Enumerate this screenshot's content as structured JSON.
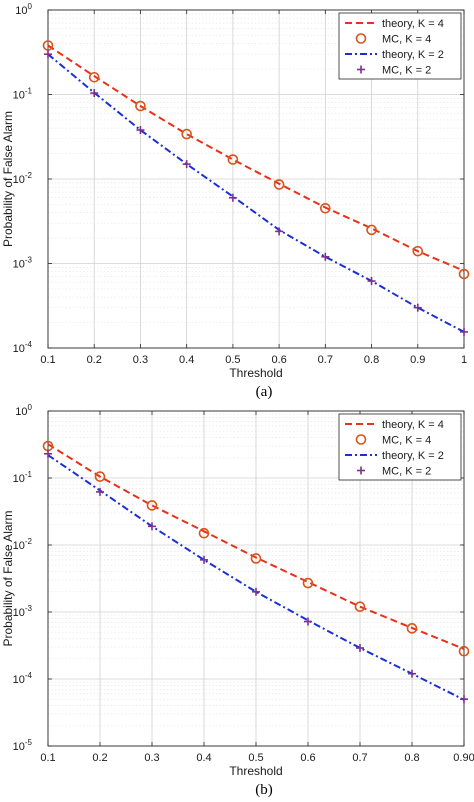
{
  "charts": [
    {
      "caption": "(a)",
      "chart_data": {
        "type": "line",
        "xlabel": "Threshold",
        "ylabel": "Probability of False Alarm",
        "yscale": "log",
        "xlim": [
          0.1,
          1.0
        ],
        "ylim": [
          0.0001,
          1
        ],
        "xticks": [
          0.1,
          0.2,
          0.3,
          0.4,
          0.5,
          0.6,
          0.7,
          0.8,
          0.9,
          1.0
        ],
        "xtick_labels": [
          "0.1",
          "0.2",
          "0.3",
          "0.4",
          "0.5",
          "0.6",
          "0.7",
          "0.8",
          "0.9",
          "1"
        ],
        "ytick_exponents": [
          -4,
          -3,
          -2,
          -1,
          0
        ],
        "grid": true,
        "legend_position": "top-right",
        "series": [
          {
            "name": "theory, K = 4",
            "style": "dashed",
            "color": "#e8311a",
            "x": [
              0.1,
              0.2,
              0.3,
              0.4,
              0.5,
              0.6,
              0.7,
              0.8,
              0.9,
              1.0
            ],
            "y": [
              0.38,
              0.165,
              0.073,
              0.034,
              0.017,
              0.0088,
              0.0046,
              0.0026,
              0.0014,
              0.00082
            ]
          },
          {
            "name": "MC, K = 4",
            "style": "marker-circle",
            "color": "#d9541a",
            "x": [
              0.1,
              0.2,
              0.3,
              0.4,
              0.5,
              0.6,
              0.7,
              0.8,
              0.9,
              1.0
            ],
            "y": [
              0.38,
              0.16,
              0.073,
              0.034,
              0.017,
              0.0086,
              0.0045,
              0.0025,
              0.0014,
              0.00075
            ]
          },
          {
            "name": "theory, K = 2",
            "style": "dashdot",
            "color": "#1a2fd6",
            "x": [
              0.1,
              0.2,
              0.3,
              0.4,
              0.5,
              0.6,
              0.7,
              0.8,
              0.9,
              1.0
            ],
            "y": [
              0.3,
              0.105,
              0.038,
              0.015,
              0.0062,
              0.0025,
              0.0012,
              0.00062,
              0.0003,
              0.000155
            ]
          },
          {
            "name": "MC, K = 2",
            "style": "marker-plus",
            "color": "#7e2f8e",
            "x": [
              0.1,
              0.2,
              0.3,
              0.4,
              0.5,
              0.6,
              0.7,
              0.8,
              0.9,
              1.0
            ],
            "y": [
              0.3,
              0.104,
              0.038,
              0.015,
              0.006,
              0.0024,
              0.0012,
              0.00062,
              0.0003,
              0.000155
            ]
          }
        ]
      }
    },
    {
      "caption": "(b)",
      "chart_data": {
        "type": "line",
        "xlabel": "Threshold",
        "ylabel": "Probability of False Alarm",
        "yscale": "log",
        "xlim": [
          0.1,
          0.9
        ],
        "ylim": [
          1e-05,
          1
        ],
        "xticks": [
          0.1,
          0.2,
          0.3,
          0.4,
          0.5,
          0.6,
          0.7,
          0.8,
          0.9
        ],
        "xtick_labels": [
          "0.1",
          "0.2",
          "0.3",
          "0.4",
          "0.5",
          "0.6",
          "0.7",
          "0.8",
          "0.90"
        ],
        "ytick_exponents": [
          -5,
          -4,
          -3,
          -2,
          -1,
          0
        ],
        "grid": true,
        "legend_position": "top-right",
        "series": [
          {
            "name": "theory, K = 4",
            "style": "dashed",
            "color": "#e8311a",
            "x": [
              0.1,
              0.2,
              0.3,
              0.4,
              0.5,
              0.6,
              0.7,
              0.8,
              0.9
            ],
            "y": [
              0.32,
              0.105,
              0.039,
              0.016,
              0.0065,
              0.0028,
              0.0012,
              0.00058,
              0.00028
            ]
          },
          {
            "name": "MC, K = 4",
            "style": "marker-circle",
            "color": "#d9541a",
            "x": [
              0.1,
              0.2,
              0.3,
              0.4,
              0.5,
              0.6,
              0.7,
              0.8,
              0.9
            ],
            "y": [
              0.3,
              0.105,
              0.039,
              0.015,
              0.0063,
              0.0027,
              0.0012,
              0.00057,
              0.00026
            ]
          },
          {
            "name": "theory, K = 2",
            "style": "dashdot",
            "color": "#1a2fd6",
            "x": [
              0.1,
              0.2,
              0.3,
              0.4,
              0.5,
              0.6,
              0.7,
              0.8,
              0.9
            ],
            "y": [
              0.22,
              0.065,
              0.019,
              0.006,
              0.002,
              0.00075,
              0.00029,
              0.00012,
              4.9e-05
            ]
          },
          {
            "name": "MC, K = 2",
            "style": "marker-plus",
            "color": "#7e2f8e",
            "x": [
              0.1,
              0.2,
              0.3,
              0.4,
              0.5,
              0.6,
              0.7,
              0.8,
              0.9
            ],
            "y": [
              0.23,
              0.062,
              0.019,
              0.006,
              0.002,
              0.00072,
              0.00029,
              0.00012,
              5e-05
            ]
          }
        ]
      }
    }
  ]
}
